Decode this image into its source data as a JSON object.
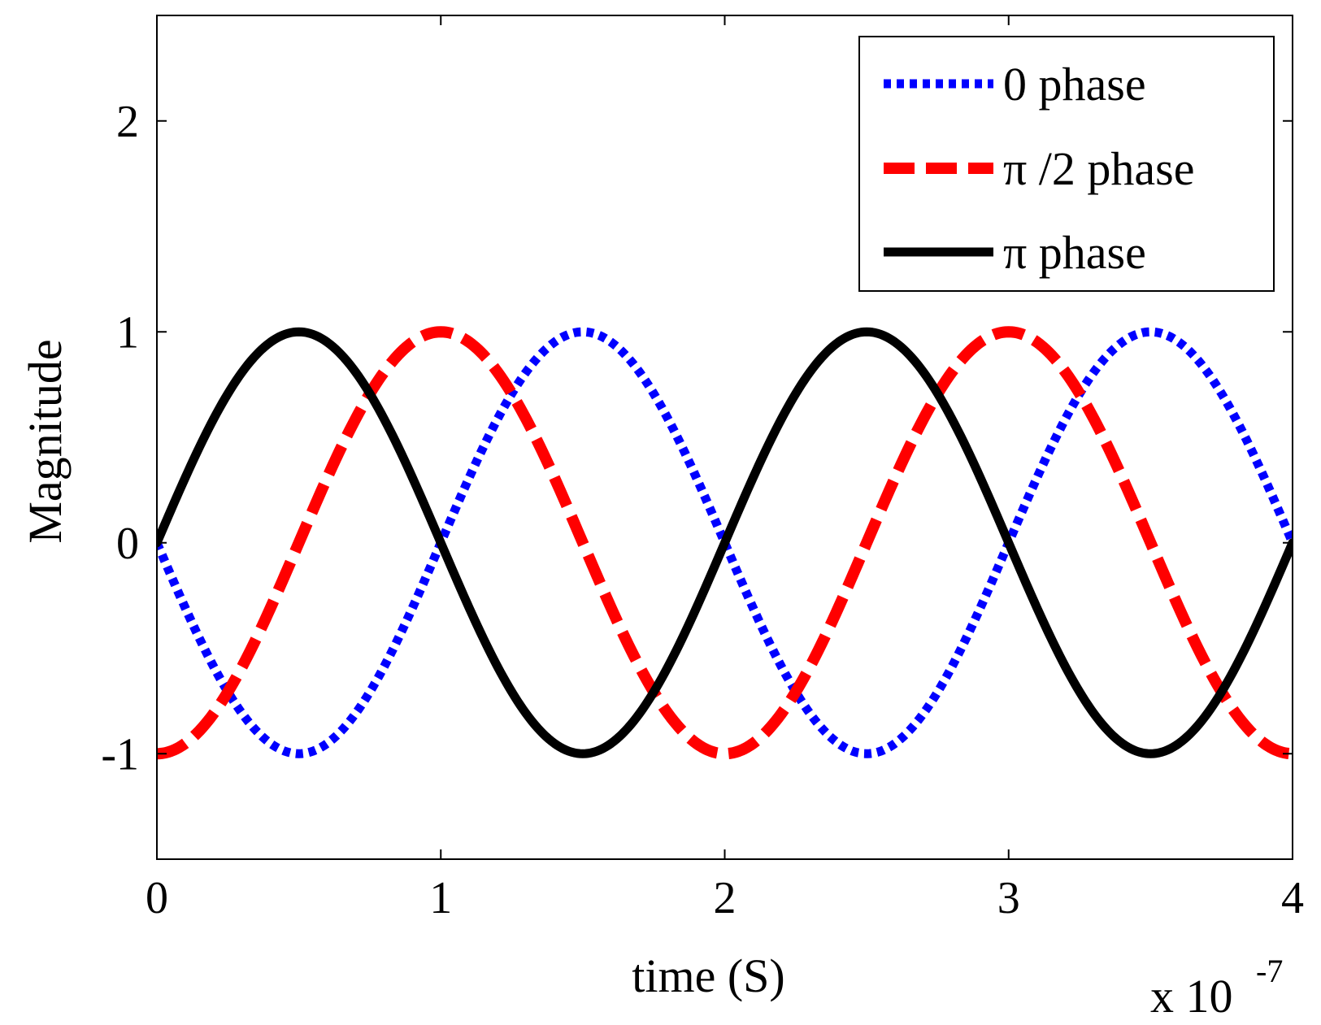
{
  "chart_data": {
    "type": "line",
    "title": "",
    "xlabel": "time (S)",
    "ylabel": "Magnitude",
    "x_multiplier_label": "x 10",
    "x_multiplier_exponent": "-7",
    "xlim": [
      0,
      4
    ],
    "ylim": [
      -1.5,
      2.5
    ],
    "x_ticks": [
      0,
      1,
      2,
      3,
      4
    ],
    "x_tick_labels": [
      "0",
      "1",
      "2",
      "3",
      "4"
    ],
    "y_ticks": [
      -1,
      0,
      1,
      2
    ],
    "y_tick_labels": [
      "-1",
      "0",
      "1",
      "2"
    ],
    "grid": false,
    "legend_position": "top-right",
    "x_unit_scale": 1e-07,
    "series": [
      {
        "name": "0 phase",
        "color": "#0000ff",
        "style": "dotted",
        "function": "-sin(2*pi*f*t)",
        "frequency_hz": 5000000,
        "x": [
          0,
          0.25,
          0.5,
          0.75,
          1.0,
          1.25,
          1.5,
          1.75,
          2.0,
          2.25,
          2.5,
          2.75,
          3.0,
          3.25,
          3.5,
          3.75,
          4.0
        ],
        "values": [
          0,
          -0.707,
          -1,
          -0.707,
          0,
          0.707,
          1,
          0.707,
          0,
          -0.707,
          -1,
          -0.707,
          0,
          0.707,
          1,
          0.707,
          0
        ]
      },
      {
        "name": "π /2 phase",
        "color": "#ff0000",
        "style": "dashed",
        "function": "-cos(2*pi*f*t)",
        "frequency_hz": 5000000,
        "x": [
          0,
          0.25,
          0.5,
          0.75,
          1.0,
          1.25,
          1.5,
          1.75,
          2.0,
          2.25,
          2.5,
          2.75,
          3.0,
          3.25,
          3.5,
          3.75,
          4.0
        ],
        "values": [
          -1,
          -0.707,
          0,
          0.707,
          1,
          0.707,
          0,
          -0.707,
          -1,
          -0.707,
          0,
          0.707,
          1,
          0.707,
          0,
          -0.707,
          -1
        ]
      },
      {
        "name": "π phase",
        "color": "#000000",
        "style": "solid",
        "function": "sin(2*pi*f*t)",
        "frequency_hz": 5000000,
        "x": [
          0,
          0.25,
          0.5,
          0.75,
          1.0,
          1.25,
          1.5,
          1.75,
          2.0,
          2.25,
          2.5,
          2.75,
          3.0,
          3.25,
          3.5,
          3.75,
          4.0
        ],
        "values": [
          0,
          0.707,
          1,
          0.707,
          0,
          -0.707,
          -1,
          -0.707,
          0,
          0.707,
          1,
          0.707,
          0,
          -0.707,
          -1,
          -0.707,
          0
        ]
      }
    ]
  }
}
